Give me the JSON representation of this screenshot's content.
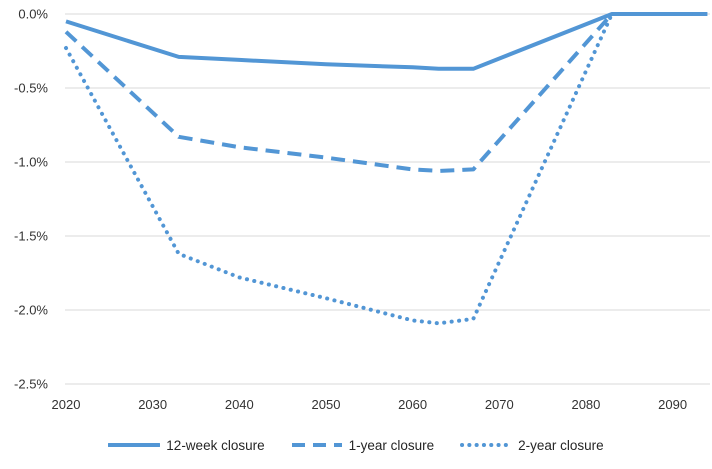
{
  "chart_data": {
    "type": "line",
    "title": "",
    "xlabel": "",
    "ylabel": "",
    "x": [
      2020,
      2033,
      2040,
      2050,
      2060,
      2063,
      2067,
      2083,
      2094
    ],
    "series": [
      {
        "name": "12-week closure",
        "style": "solid",
        "values": [
          -0.05,
          -0.29,
          -0.31,
          -0.34,
          -0.36,
          -0.37,
          -0.37,
          0.0,
          0.0
        ]
      },
      {
        "name": "1-year closure",
        "style": "dashed",
        "values": [
          -0.12,
          -0.83,
          -0.9,
          -0.97,
          -1.05,
          -1.06,
          -1.05,
          0.0,
          0.0
        ]
      },
      {
        "name": "2-year closure",
        "style": "dotted",
        "values": [
          -0.23,
          -1.62,
          -1.78,
          -1.92,
          -2.07,
          -2.09,
          -2.06,
          0.0,
          0.0
        ]
      }
    ],
    "x_ticks": [
      "2020",
      "2030",
      "2040",
      "2050",
      "2060",
      "2070",
      "2080",
      "2090"
    ],
    "x_tick_values": [
      2020,
      2030,
      2040,
      2050,
      2060,
      2070,
      2080,
      2090
    ],
    "y_ticks": [
      "0.0%",
      "-0.5%",
      "-1.0%",
      "-1.5%",
      "-2.0%",
      "-2.5%"
    ],
    "y_tick_values": [
      0,
      -0.5,
      -1.0,
      -1.5,
      -2.0,
      -2.5
    ],
    "xlim": [
      2020,
      2094
    ],
    "ylim": [
      -2.5,
      0
    ],
    "grid": true,
    "legend_position": "bottom",
    "line_color": "#5296D5",
    "gridline_color": "#D9D9D9",
    "tick_text_color": "#333333"
  },
  "legend": {
    "items": [
      {
        "label": "12-week closure",
        "style": "solid"
      },
      {
        "label": "1-year closure",
        "style": "dashed"
      },
      {
        "label": "2-year closure",
        "style": "dotted"
      }
    ]
  }
}
